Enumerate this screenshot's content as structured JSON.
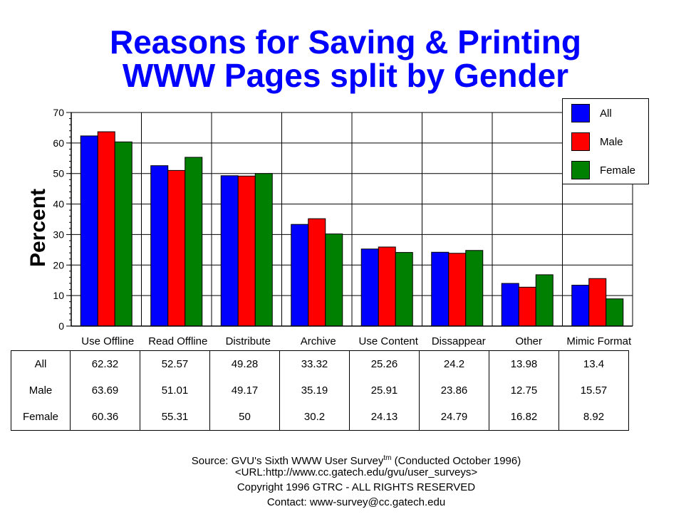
{
  "title_line1": "Reasons for Saving & Printing",
  "title_line2": "WWW Pages split by Gender",
  "chart_data": {
    "type": "bar",
    "title": "Reasons for Saving & Printing WWW Pages split by Gender",
    "ylabel": "Percent",
    "xlabel": "",
    "ylim": [
      0,
      70
    ],
    "yticks": [
      0,
      10,
      20,
      30,
      40,
      50,
      60,
      70
    ],
    "grid": true,
    "legend_position": "top-right",
    "categories": [
      "Use Offline",
      "Read Offline",
      "Distribute",
      "Archive",
      "Use Content",
      "Dissappear",
      "Other",
      "Mimic Format"
    ],
    "series": [
      {
        "name": "All",
        "color": "#0000ff",
        "values": [
          62.32,
          52.57,
          49.28,
          33.32,
          25.26,
          24.2,
          13.98,
          13.4
        ]
      },
      {
        "name": "Male",
        "color": "#ff0000",
        "values": [
          63.69,
          51.01,
          49.17,
          35.19,
          25.91,
          23.86,
          12.75,
          15.57
        ]
      },
      {
        "name": "Female",
        "color": "#008000",
        "values": [
          60.36,
          55.31,
          50,
          30.2,
          24.13,
          24.79,
          16.82,
          8.92
        ]
      }
    ]
  },
  "table_rows": [
    {
      "label": "All",
      "values": [
        "62.32",
        "52.57",
        "49.28",
        "33.32",
        "25.26",
        "24.2",
        "13.98",
        "13.4"
      ]
    },
    {
      "label": "Male",
      "values": [
        "63.69",
        "51.01",
        "49.17",
        "35.19",
        "25.91",
        "23.86",
        "12.75",
        "15.57"
      ]
    },
    {
      "label": "Female",
      "values": [
        "60.36",
        "55.31",
        "50",
        "30.2",
        "24.13",
        "24.79",
        "16.82",
        "8.92"
      ]
    }
  ],
  "footer": {
    "source_prefix": "Source: GVU's Sixth WWW User Survey",
    "source_sup": "tm",
    "source_suffix": " (Conducted October 1996)",
    "url": "<URL:http://www.cc.gatech.edu/gvu/user_surveys>",
    "copyright": "Copyright 1996 GTRC - ALL RIGHTS RESERVED",
    "contact": "Contact: www-survey@cc.gatech.edu"
  }
}
